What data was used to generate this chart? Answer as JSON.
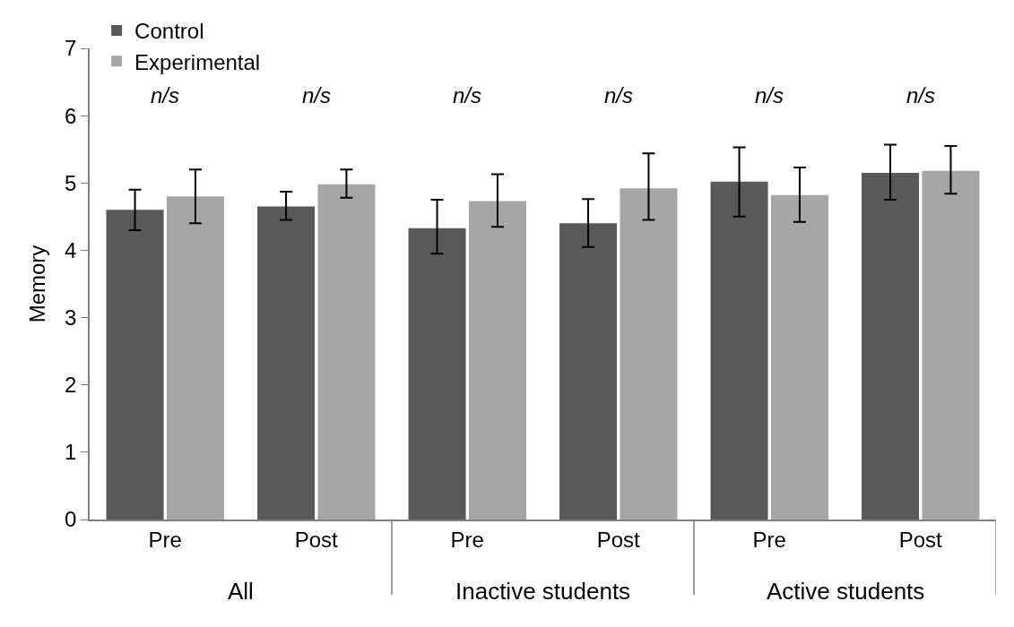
{
  "chart_data": {
    "type": "bar",
    "ylabel": "Memory",
    "categories": [
      "Pre",
      "Post",
      "Pre",
      "Post",
      "Pre",
      "Post"
    ],
    "series": [
      {
        "name": "Control",
        "color": "#595959",
        "values": [
          4.6,
          4.65,
          4.33,
          4.4,
          5.02,
          5.15
        ],
        "errors": [
          [
            4.3,
            4.9
          ],
          [
            4.45,
            4.87
          ],
          [
            3.95,
            4.75
          ],
          [
            4.05,
            4.76
          ],
          [
            4.5,
            5.53
          ],
          [
            4.75,
            5.57
          ]
        ]
      },
      {
        "name": "Experimental",
        "color": "#a6a6a6",
        "values": [
          4.8,
          4.98,
          4.73,
          4.92,
          4.82,
          5.18
        ],
        "errors": [
          [
            4.4,
            5.2
          ],
          [
            4.78,
            5.2
          ],
          [
            4.35,
            5.13
          ],
          [
            4.45,
            5.44
          ],
          [
            4.42,
            5.23
          ],
          [
            4.84,
            5.55
          ]
        ]
      }
    ],
    "annotations": [
      "n/s",
      "n/s",
      "n/s",
      "n/s",
      "n/s",
      "n/s",
      "All",
      "Inactive students",
      "Active students"
    ],
    "ylim": [
      0,
      7
    ],
    "yticks": [
      0,
      1,
      2,
      3,
      4,
      5,
      6,
      7
    ],
    "legend": "top left"
  }
}
